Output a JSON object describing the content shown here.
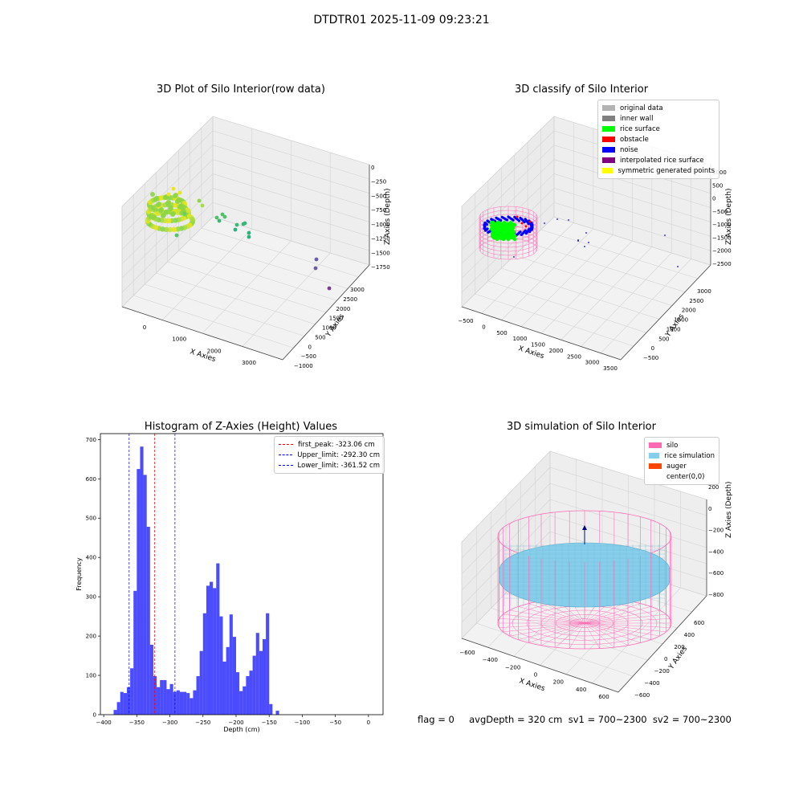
{
  "suptitle": "DTDTR01 2025-11-09 09:23:21",
  "panels": {
    "raw": {
      "title": "3D Plot of Silo Interior(row data)",
      "xlabel": "X Axies",
      "ylabel": "Y Axies",
      "zlabel": "Z Axies (Depth)",
      "xticks": [
        "0",
        "1000",
        "2000",
        "3000"
      ],
      "yticks": [
        "−1000",
        "−500",
        "0",
        "500",
        "1000",
        "1500",
        "2000",
        "2500",
        "3000"
      ],
      "zticks": [
        "0",
        "−250",
        "−500",
        "−750",
        "−1000",
        "−1250",
        "−1500",
        "−1750"
      ]
    },
    "classify": {
      "title": "3D classify of Silo Interior",
      "xlabel": "X Axies",
      "ylabel": "Y Axies",
      "zlabel": "Z Axies (Depth)",
      "xticks": [
        "−500",
        "0",
        "500",
        "1000",
        "1500",
        "2000",
        "2500",
        "3000",
        "3500"
      ],
      "yticks": [
        "−500",
        "0",
        "500",
        "1000",
        "1500",
        "2000",
        "2500",
        "3000"
      ],
      "zticks": [
        "1000",
        "500",
        "0",
        "−500",
        "−1000",
        "−1500",
        "−2000",
        "−2500"
      ],
      "legend": [
        {
          "label": "original data",
          "color": "#b3b3b3"
        },
        {
          "label": "inner wall",
          "color": "#808080"
        },
        {
          "label": "rice surface",
          "color": "#00ff00"
        },
        {
          "label": "obstacle",
          "color": "#ff0000"
        },
        {
          "label": "noise",
          "color": "#0000ff"
        },
        {
          "label": "interpolated rice surface",
          "color": "#800080"
        },
        {
          "label": "symmetric generated points",
          "color": "#ffff00"
        }
      ]
    },
    "simulation": {
      "title": "3D simulation of Silo Interior",
      "xlabel": "X Axies",
      "ylabel": "Y Axies",
      "zlabel": "Z Axies (Depth)",
      "xticks": [
        "−600",
        "−400",
        "−200",
        "0",
        "200",
        "400",
        "600"
      ],
      "yticks": [
        "−600",
        "−400",
        "−200",
        "0",
        "200",
        "400",
        "600"
      ],
      "zticks": [
        "200",
        "0",
        "−200",
        "−400",
        "−600",
        "−800"
      ],
      "legend": [
        {
          "label": "silo",
          "color": "#ff69b4"
        },
        {
          "label": "rice simulation",
          "color": "#87ceeb"
        },
        {
          "label": "auger",
          "color": "#ff4500"
        },
        {
          "label": "center(0,0)",
          "color": ""
        }
      ]
    }
  },
  "status_text": "flag = 0     avgDepth = 320 cm  sv1 = 700~2300  sv2 = 700~2300",
  "chart_data": [
    {
      "type": "scatter",
      "title": "3D Plot of Silo Interior(row data)",
      "xlabel": "X Axies",
      "ylabel": "Y Axies",
      "zlabel": "Z Axies (Depth)",
      "xlim": [
        -500,
        3500
      ],
      "ylim": [
        -1000,
        3000
      ],
      "zlim": [
        -1900,
        100
      ]
    },
    {
      "type": "scatter",
      "title": "3D classify of Silo Interior",
      "xlabel": "X Axies",
      "ylabel": "Y Axies",
      "zlabel": "Z Axies (Depth)",
      "series": [
        {
          "name": "original data"
        },
        {
          "name": "inner wall"
        },
        {
          "name": "rice surface"
        },
        {
          "name": "obstacle"
        },
        {
          "name": "noise"
        },
        {
          "name": "interpolated rice surface"
        },
        {
          "name": "symmetric generated points"
        }
      ]
    },
    {
      "type": "bar",
      "title": "Histogram of Z-Axies (Height) Values",
      "xlabel": "Depth (cm)",
      "ylabel": "Frequency",
      "xlim": [
        -405,
        22
      ],
      "ylim": [
        0,
        715
      ],
      "xticks": [
        -400,
        -350,
        -300,
        -250,
        -200,
        -150,
        -100,
        -50,
        0
      ],
      "yticks": [
        0,
        100,
        200,
        300,
        400,
        500,
        600,
        700
      ],
      "bin_start": -385,
      "bin_width": 5,
      "values": [
        12,
        32,
        58,
        55,
        70,
        118,
        315,
        625,
        682,
        610,
        478,
        178,
        98,
        70,
        88,
        88,
        65,
        78,
        58,
        62,
        58,
        58,
        55,
        42,
        62,
        98,
        162,
        258,
        328,
        338,
        322,
        385,
        250,
        135,
        172,
        255,
        198,
        108,
        60,
        72,
        98,
        112,
        150,
        208,
        162,
        192,
        258,
        27,
        0,
        10
      ],
      "color": "#0000ff",
      "vlines": [
        {
          "name": "first_peak: -323.06 cm",
          "x": -323.06,
          "color": "#ff0000"
        },
        {
          "name": "Upper_limit: -292.30 cm",
          "x": -292.3,
          "color": "#0000ff"
        },
        {
          "name": "Lower_limit: -361.52 cm",
          "x": -361.52,
          "color": "#0000ff"
        }
      ],
      "legend_position": "top-right"
    },
    {
      "type": "surface",
      "title": "3D simulation of Silo Interior",
      "xlabel": "X Axies",
      "ylabel": "Y Axies",
      "zlabel": "Z Axies (Depth)",
      "xlim": [
        -600,
        600
      ],
      "ylim": [
        -600,
        600
      ],
      "zlim": [
        -900,
        300
      ],
      "series": [
        {
          "name": "silo"
        },
        {
          "name": "rice simulation"
        },
        {
          "name": "auger"
        },
        {
          "name": "center(0,0)"
        }
      ]
    }
  ]
}
